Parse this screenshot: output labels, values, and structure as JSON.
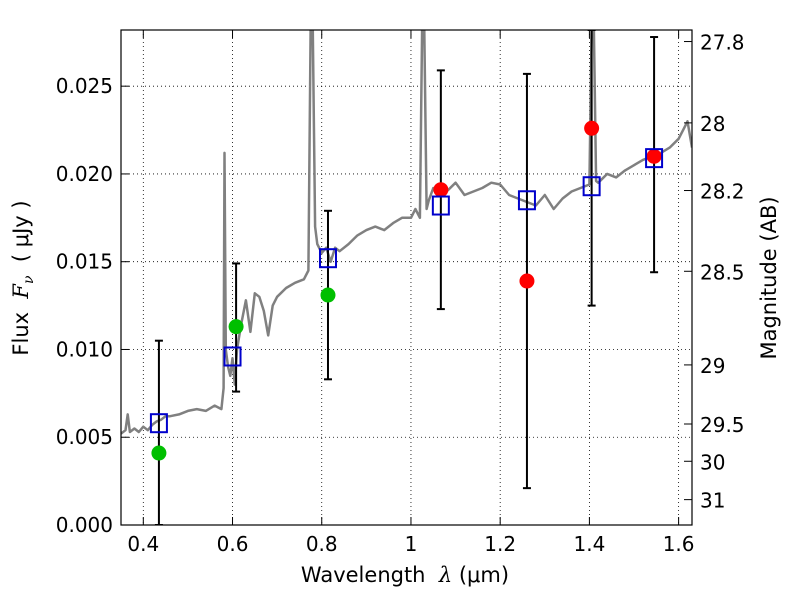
{
  "chart_data": {
    "type": "scatter",
    "xlabel": {
      "pre": "Wavelength  ",
      "sym": "λ",
      "unit": " (μm)"
    },
    "ylabel": {
      "pre": "Flux  ",
      "sym": "F",
      "sub": "ν",
      "unit": "  ( μJy )"
    },
    "y2label": "Magnitude (AB)",
    "xlim": [
      0.35,
      1.63
    ],
    "ylim": [
      0.0,
      0.0282
    ],
    "grid": true,
    "x_ticks": [
      0.4,
      0.6,
      0.8,
      1.0,
      1.2,
      1.4,
      1.6
    ],
    "x_tick_labels": [
      "0.4",
      "0.6",
      "0.8",
      "1",
      "1.2",
      "1.4",
      "1.6"
    ],
    "y_ticks": [
      0.0,
      0.005,
      0.01,
      0.015,
      0.02,
      0.025
    ],
    "y_tick_labels": [
      "0.000",
      "0.005",
      "0.010",
      "0.015",
      "0.020",
      "0.025"
    ],
    "magnitude_ticks": [
      {
        "mag": 27.8,
        "label": "27.8"
      },
      {
        "mag": 28.0,
        "label": "28"
      },
      {
        "mag": 28.2,
        "label": "28.2"
      },
      {
        "mag": 28.5,
        "label": "28.5"
      },
      {
        "mag": 29.0,
        "label": "29"
      },
      {
        "mag": 29.5,
        "label": "29.5"
      },
      {
        "mag": 30.0,
        "label": "30"
      },
      {
        "mag": 31.0,
        "label": "31"
      }
    ],
    "series": [
      {
        "kind": "line",
        "color": "#808080",
        "x": [
          0.35,
          0.36,
          0.365,
          0.37,
          0.38,
          0.39,
          0.4,
          0.41,
          0.42,
          0.43,
          0.44,
          0.45,
          0.46,
          0.48,
          0.5,
          0.52,
          0.54,
          0.56,
          0.575,
          0.58,
          0.582,
          0.585,
          0.59,
          0.595,
          0.6,
          0.605,
          0.61,
          0.62,
          0.63,
          0.64,
          0.65,
          0.66,
          0.67,
          0.68,
          0.69,
          0.7,
          0.72,
          0.74,
          0.76,
          0.77,
          0.775,
          0.78,
          0.785,
          0.79,
          0.8,
          0.81,
          0.82,
          0.83,
          0.84,
          0.86,
          0.88,
          0.9,
          0.92,
          0.94,
          0.96,
          0.98,
          1.0,
          1.01,
          1.02,
          1.025,
          1.03,
          1.035,
          1.04,
          1.05,
          1.06,
          1.08,
          1.1,
          1.12,
          1.14,
          1.16,
          1.18,
          1.2,
          1.22,
          1.24,
          1.26,
          1.28,
          1.3,
          1.32,
          1.34,
          1.36,
          1.38,
          1.4,
          1.405,
          1.41,
          1.415,
          1.42,
          1.44,
          1.46,
          1.48,
          1.5,
          1.52,
          1.54,
          1.56,
          1.58,
          1.6,
          1.61,
          1.62,
          1.63
        ],
        "y": [
          0.0052,
          0.0054,
          0.0063,
          0.0053,
          0.0055,
          0.0053,
          0.0056,
          0.0054,
          0.0057,
          0.0059,
          0.006,
          0.0062,
          0.0062,
          0.0063,
          0.0065,
          0.0066,
          0.0065,
          0.0068,
          0.0066,
          0.0078,
          0.0212,
          0.01,
          0.009,
          0.0085,
          0.0095,
          0.008,
          0.01,
          0.0115,
          0.0128,
          0.011,
          0.0132,
          0.013,
          0.0122,
          0.0108,
          0.0125,
          0.013,
          0.0135,
          0.0138,
          0.014,
          0.0145,
          0.0282,
          0.0282,
          0.017,
          0.016,
          0.0155,
          0.0158,
          0.015,
          0.0158,
          0.0156,
          0.016,
          0.0165,
          0.0168,
          0.017,
          0.0168,
          0.0172,
          0.0175,
          0.0175,
          0.018,
          0.0175,
          0.0282,
          0.0282,
          0.018,
          0.0185,
          0.0192,
          0.0188,
          0.019,
          0.0195,
          0.0188,
          0.019,
          0.0192,
          0.0195,
          0.0194,
          0.0188,
          0.0186,
          0.0184,
          0.0182,
          0.0188,
          0.018,
          0.0186,
          0.019,
          0.0192,
          0.0194,
          0.0282,
          0.0282,
          0.0196,
          0.0195,
          0.02,
          0.0198,
          0.0202,
          0.0205,
          0.0208,
          0.021,
          0.0212,
          0.0215,
          0.022,
          0.0225,
          0.023,
          0.0215
        ]
      },
      {
        "kind": "errorbar",
        "color": "#000000",
        "x": [
          0.435,
          0.608,
          0.814,
          1.067,
          1.26,
          1.405,
          1.545
        ],
        "low": [
          0.0,
          0.0076,
          0.0083,
          0.0123,
          0.0021,
          0.0125,
          0.0144
        ],
        "high": [
          0.0105,
          0.0149,
          0.0179,
          0.0259,
          0.0257,
          0.0282,
          0.0278
        ]
      },
      {
        "kind": "points",
        "marker": "circle",
        "color": "#00bf00",
        "x": [
          0.435,
          0.608,
          0.814
        ],
        "y": [
          0.0041,
          0.0113,
          0.0131
        ]
      },
      {
        "kind": "points",
        "marker": "circle",
        "color": "#ff0000",
        "x": [
          1.067,
          1.26,
          1.405,
          1.545
        ],
        "y": [
          0.0191,
          0.0139,
          0.0226,
          0.021
        ]
      },
      {
        "kind": "points",
        "marker": "square",
        "color": "#0000cc",
        "x": [
          0.435,
          0.6,
          0.814,
          1.067,
          1.26,
          1.405,
          1.545
        ],
        "y": [
          0.0058,
          0.0096,
          0.0152,
          0.0182,
          0.0185,
          0.0193,
          0.0209
        ]
      }
    ]
  }
}
